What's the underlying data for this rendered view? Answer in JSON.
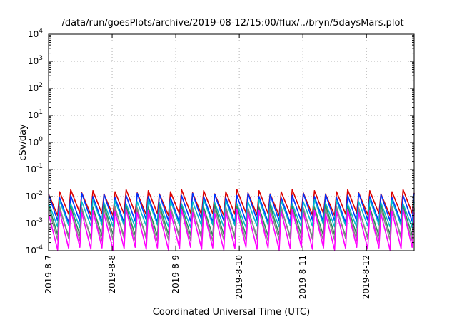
{
  "chart_data": {
    "type": "line",
    "title": "/data/run/goesPlots/archive/2019-08-12/15:00/flux/../bryn/5daysMars.plot",
    "xlabel": "Coordinated Universal Time (UTC)",
    "ylabel": "cSv/day",
    "x_ticks": [
      "2019-8-7",
      "2019-8-8",
      "2019-8-9",
      "2019-8-10",
      "2019-8-11",
      "2019-8-12"
    ],
    "xlim": [
      "2019-08-07 00:00",
      "2019-08-12 18:00"
    ],
    "y_scale": "log",
    "ylim": [
      0.0001,
      10000
    ],
    "y_ticks": [
      {
        "base": "10",
        "exp": "4"
      },
      {
        "base": "10",
        "exp": "3"
      },
      {
        "base": "10",
        "exp": "2"
      },
      {
        "base": "10",
        "exp": "1"
      },
      {
        "base": "10",
        "exp": "0"
      },
      {
        "base": "10",
        "exp": "-1"
      },
      {
        "base": "10",
        "exp": "-2"
      },
      {
        "base": "10",
        "exp": "-3"
      },
      {
        "base": "10",
        "exp": "-4"
      }
    ],
    "grid": true,
    "sawtooth_cycles": 33,
    "series": [
      {
        "color": "#dd0000",
        "peak": 0.015,
        "trough": 0.0022
      },
      {
        "color": "#0033ff",
        "peak": 0.011,
        "trough": 0.0012
      },
      {
        "color": "#00bbcc",
        "peak": 0.0065,
        "trough": 0.0008
      },
      {
        "color": "#2e8b57",
        "peak": 0.004,
        "trough": 0.00035
      },
      {
        "color": "#888888",
        "peak": 0.0035,
        "trough": 0.00025
      },
      {
        "color": "#ff00ff",
        "peak": 0.0028,
        "trough": 0.00012
      }
    ]
  }
}
